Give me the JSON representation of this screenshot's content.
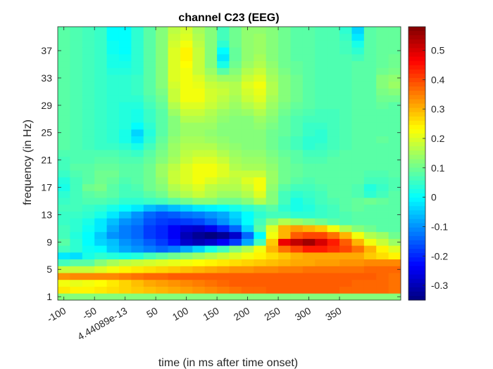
{
  "chart_data": {
    "type": "heatmap",
    "title": "channel C23 (EEG)",
    "xlabel": "time (in ms after time onset)",
    "ylabel": "frequency (in Hz)",
    "colormap": "jet",
    "x": [
      -100,
      -80,
      -60,
      -40,
      -20,
      0,
      20,
      40,
      60,
      80,
      100,
      120,
      140,
      160,
      180,
      200,
      220,
      240,
      260,
      280,
      300,
      320,
      340,
      360,
      380,
      400,
      420,
      440
    ],
    "y": [
      1,
      2,
      3,
      4,
      5,
      6,
      7,
      8,
      9,
      10,
      11,
      12,
      13,
      14,
      15,
      16,
      17,
      18,
      19,
      20,
      21,
      22,
      23,
      24,
      25,
      26,
      27,
      28,
      29,
      30,
      31,
      32,
      33,
      34,
      35,
      36,
      37,
      38,
      39,
      40
    ],
    "x_tick_labels": [
      "-100",
      "-50",
      "4.44089e-13",
      "50",
      "100",
      "150",
      "200",
      "250",
      "300",
      "350"
    ],
    "x_tick_values": [
      -100,
      -50,
      0,
      50,
      100,
      150,
      200,
      250,
      300,
      350
    ],
    "y_tick_values": [
      1,
      5,
      9,
      13,
      17,
      21,
      25,
      29,
      33,
      37
    ],
    "y_tick_labels": [
      "1",
      "5",
      "9",
      "13",
      "17",
      "21",
      "25",
      "29",
      "33",
      "37"
    ],
    "colorbar_ticks": [
      "0.5",
      "0.4",
      "0.3",
      "0.2",
      "0.1",
      "0",
      "-0.1",
      "-0.2",
      "-0.3"
    ],
    "colorbar_tick_values": [
      0.5,
      0.4,
      0.3,
      0.2,
      0.1,
      0,
      -0.1,
      -0.2,
      -0.3
    ],
    "clim": [
      -0.35,
      0.58
    ],
    "xlim": [
      -110,
      450
    ],
    "ylim": [
      0.5,
      40.5
    ],
    "values": [
      [
        0.12,
        0.12,
        0.12,
        0.12,
        0.12,
        0.12,
        0.12,
        0.12,
        0.12,
        0.12,
        0.12,
        0.12,
        0.12,
        0.12,
        0.12,
        0.12,
        0.12,
        0.12,
        0.12,
        0.12,
        0.12,
        0.12,
        0.12,
        0.12,
        0.12,
        0.12,
        0.12,
        0.12
      ],
      [
        0.25,
        0.24,
        0.24,
        0.25,
        0.26,
        0.27,
        0.28,
        0.29,
        0.3,
        0.31,
        0.32,
        0.33,
        0.34,
        0.35,
        0.36,
        0.37,
        0.37,
        0.38,
        0.38,
        0.38,
        0.38,
        0.38,
        0.38,
        0.37,
        0.37,
        0.37,
        0.37,
        0.36
      ],
      [
        0.22,
        0.21,
        0.22,
        0.23,
        0.25,
        0.27,
        0.29,
        0.31,
        0.32,
        0.33,
        0.34,
        0.35,
        0.36,
        0.37,
        0.38,
        0.38,
        0.38,
        0.38,
        0.38,
        0.38,
        0.38,
        0.38,
        0.38,
        0.38,
        0.37,
        0.37,
        0.37,
        0.36
      ],
      [
        0.33,
        0.34,
        0.34,
        0.34,
        0.34,
        0.35,
        0.36,
        0.37,
        0.37,
        0.38,
        0.38,
        0.38,
        0.38,
        0.38,
        0.38,
        0.38,
        0.38,
        0.38,
        0.38,
        0.38,
        0.38,
        0.38,
        0.38,
        0.38,
        0.38,
        0.38,
        0.37,
        0.36
      ],
      [
        0.18,
        0.18,
        0.18,
        0.2,
        0.22,
        0.24,
        0.25,
        0.26,
        0.27,
        0.28,
        0.29,
        0.3,
        0.31,
        0.32,
        0.33,
        0.33,
        0.34,
        0.34,
        0.35,
        0.35,
        0.36,
        0.36,
        0.36,
        0.36,
        0.36,
        0.37,
        0.37,
        0.37
      ],
      [
        0.06,
        0.08,
        0.08,
        0.12,
        0.15,
        0.17,
        0.18,
        0.19,
        0.2,
        0.21,
        0.22,
        0.23,
        0.24,
        0.25,
        0.26,
        0.27,
        0.28,
        0.29,
        0.3,
        0.31,
        0.31,
        0.32,
        0.32,
        0.33,
        0.33,
        0.34,
        0.34,
        0.34
      ],
      [
        -0.02,
        -0.03,
        0.02,
        0.04,
        0.03,
        0.02,
        0.03,
        0.06,
        0.08,
        0.1,
        0.12,
        0.14,
        0.16,
        0.18,
        0.2,
        0.22,
        0.24,
        0.26,
        0.28,
        0.3,
        0.31,
        0.31,
        0.31,
        0.31,
        0.31,
        0.28,
        0.26,
        0.24
      ],
      [
        0.06,
        0.04,
        0.01,
        0.0,
        -0.05,
        -0.08,
        -0.1,
        -0.12,
        -0.14,
        -0.12,
        -0.08,
        -0.04,
        0.02,
        0.06,
        0.12,
        0.16,
        0.22,
        0.3,
        0.36,
        0.4,
        0.44,
        0.44,
        0.42,
        0.4,
        0.36,
        0.3,
        0.24,
        0.2
      ],
      [
        0.08,
        0.04,
        0.0,
        -0.04,
        -0.06,
        -0.1,
        -0.12,
        -0.15,
        -0.18,
        -0.22,
        -0.28,
        -0.3,
        -0.28,
        -0.24,
        -0.18,
        -0.08,
        0.06,
        0.28,
        0.48,
        0.52,
        0.55,
        0.5,
        0.44,
        0.38,
        0.3,
        0.22,
        0.18,
        0.14
      ],
      [
        0.06,
        0.03,
        0.0,
        -0.05,
        -0.1,
        -0.12,
        -0.14,
        -0.18,
        -0.2,
        -0.24,
        -0.3,
        -0.33,
        -0.35,
        -0.33,
        -0.28,
        -0.14,
        0.0,
        0.22,
        0.3,
        0.38,
        0.4,
        0.4,
        0.36,
        0.3,
        0.22,
        0.16,
        0.14,
        0.1
      ],
      [
        0.06,
        0.04,
        0.01,
        -0.02,
        -0.08,
        -0.12,
        -0.14,
        -0.18,
        -0.2,
        -0.24,
        -0.27,
        -0.28,
        -0.25,
        -0.2,
        -0.14,
        -0.04,
        0.08,
        0.2,
        0.3,
        0.32,
        0.3,
        0.28,
        0.22,
        0.16,
        0.12,
        0.1,
        0.08,
        0.08
      ],
      [
        0.05,
        0.04,
        0.02,
        -0.02,
        -0.06,
        -0.1,
        -0.12,
        -0.16,
        -0.18,
        -0.19,
        -0.18,
        -0.17,
        -0.14,
        -0.1,
        -0.06,
        0.0,
        0.06,
        0.12,
        0.16,
        0.14,
        0.12,
        0.1,
        0.08,
        0.07,
        0.08,
        0.08,
        0.08,
        0.08
      ],
      [
        0.05,
        0.05,
        0.04,
        0.02,
        -0.02,
        -0.06,
        -0.1,
        -0.14,
        -0.16,
        -0.15,
        -0.13,
        -0.12,
        -0.1,
        -0.08,
        -0.04,
        0.0,
        0.04,
        0.06,
        0.06,
        0.04,
        0.04,
        0.05,
        0.06,
        0.07,
        0.08,
        0.08,
        0.08,
        0.08
      ],
      [
        0.06,
        0.06,
        0.05,
        0.04,
        0.02,
        0.0,
        -0.02,
        -0.06,
        -0.08,
        -0.06,
        -0.04,
        -0.02,
        -0.01,
        0.0,
        0.02,
        0.04,
        0.06,
        0.08,
        0.04,
        0.02,
        0.03,
        0.05,
        0.06,
        0.08,
        0.09,
        0.08,
        0.08,
        0.08
      ],
      [
        0.05,
        0.06,
        0.07,
        0.07,
        0.06,
        0.04,
        0.04,
        0.05,
        0.06,
        0.08,
        0.1,
        0.12,
        0.12,
        0.1,
        0.1,
        0.12,
        0.16,
        0.12,
        0.06,
        0.02,
        0.04,
        0.06,
        0.07,
        0.08,
        0.09,
        0.1,
        0.09,
        0.08
      ],
      [
        0.04,
        0.06,
        0.08,
        0.09,
        0.08,
        0.06,
        0.06,
        0.08,
        0.1,
        0.14,
        0.16,
        0.18,
        0.16,
        0.14,
        0.14,
        0.16,
        0.2,
        0.12,
        0.06,
        0.04,
        0.05,
        0.06,
        0.08,
        0.08,
        0.07,
        0.04,
        0.06,
        0.08
      ],
      [
        0.02,
        0.06,
        0.1,
        0.11,
        0.08,
        0.06,
        0.07,
        0.1,
        0.12,
        0.16,
        0.18,
        0.2,
        0.17,
        0.16,
        0.16,
        0.18,
        0.22,
        0.13,
        0.08,
        0.06,
        0.06,
        0.07,
        0.08,
        0.08,
        0.07,
        0.03,
        0.05,
        0.07
      ],
      [
        0.03,
        0.06,
        0.08,
        0.1,
        0.09,
        0.07,
        0.08,
        0.1,
        0.13,
        0.18,
        0.2,
        0.22,
        0.2,
        0.18,
        0.17,
        0.2,
        0.22,
        0.14,
        0.1,
        0.08,
        0.07,
        0.08,
        0.08,
        0.08,
        0.08,
        0.06,
        0.06,
        0.07
      ],
      [
        0.05,
        0.07,
        0.08,
        0.1,
        0.1,
        0.08,
        0.08,
        0.1,
        0.14,
        0.18,
        0.2,
        0.22,
        0.22,
        0.2,
        0.18,
        0.18,
        0.18,
        0.14,
        0.1,
        0.09,
        0.08,
        0.08,
        0.08,
        0.08,
        0.08,
        0.07,
        0.07,
        0.08
      ],
      [
        0.06,
        0.08,
        0.08,
        0.09,
        0.09,
        0.08,
        0.08,
        0.1,
        0.14,
        0.17,
        0.2,
        0.22,
        0.22,
        0.2,
        0.16,
        0.15,
        0.15,
        0.13,
        0.1,
        0.09,
        0.08,
        0.08,
        0.08,
        0.08,
        0.08,
        0.08,
        0.08,
        0.08
      ],
      [
        0.06,
        0.07,
        0.07,
        0.08,
        0.08,
        0.07,
        0.07,
        0.09,
        0.12,
        0.15,
        0.18,
        0.2,
        0.2,
        0.18,
        0.15,
        0.14,
        0.14,
        0.12,
        0.1,
        0.08,
        0.07,
        0.07,
        0.08,
        0.08,
        0.08,
        0.08,
        0.08,
        0.08
      ],
      [
        0.07,
        0.07,
        0.07,
        0.07,
        0.07,
        0.06,
        0.05,
        0.08,
        0.11,
        0.14,
        0.17,
        0.18,
        0.18,
        0.16,
        0.14,
        0.13,
        0.13,
        0.11,
        0.09,
        0.08,
        0.06,
        0.06,
        0.07,
        0.08,
        0.08,
        0.08,
        0.08,
        0.08
      ],
      [
        0.08,
        0.07,
        0.06,
        0.05,
        0.05,
        0.04,
        0.02,
        0.06,
        0.1,
        0.14,
        0.16,
        0.16,
        0.16,
        0.14,
        0.13,
        0.12,
        0.12,
        0.1,
        0.08,
        0.06,
        0.04,
        0.05,
        0.06,
        0.07,
        0.08,
        0.08,
        0.08,
        0.08
      ],
      [
        0.08,
        0.07,
        0.06,
        0.05,
        0.04,
        0.02,
        -0.02,
        0.04,
        0.09,
        0.13,
        0.15,
        0.15,
        0.14,
        0.13,
        0.12,
        0.12,
        0.12,
        0.1,
        0.08,
        0.06,
        0.04,
        0.04,
        0.06,
        0.07,
        0.08,
        0.08,
        0.09,
        0.08
      ],
      [
        0.08,
        0.07,
        0.06,
        0.05,
        0.04,
        0.02,
        -0.04,
        0.03,
        0.08,
        0.12,
        0.14,
        0.14,
        0.13,
        0.12,
        0.12,
        0.12,
        0.12,
        0.1,
        0.09,
        0.07,
        0.05,
        0.04,
        0.06,
        0.07,
        0.08,
        0.08,
        0.08,
        0.08
      ],
      [
        0.08,
        0.07,
        0.06,
        0.05,
        0.04,
        0.03,
        0.0,
        0.04,
        0.08,
        0.12,
        0.14,
        0.14,
        0.14,
        0.12,
        0.12,
        0.12,
        0.13,
        0.11,
        0.09,
        0.07,
        0.05,
        0.05,
        0.06,
        0.07,
        0.08,
        0.08,
        0.08,
        0.08
      ],
      [
        0.08,
        0.07,
        0.06,
        0.05,
        0.04,
        0.03,
        0.02,
        0.05,
        0.08,
        0.12,
        0.16,
        0.16,
        0.15,
        0.13,
        0.12,
        0.12,
        0.14,
        0.12,
        0.09,
        0.07,
        0.06,
        0.06,
        0.06,
        0.07,
        0.08,
        0.08,
        0.08,
        0.08
      ],
      [
        0.08,
        0.07,
        0.06,
        0.05,
        0.04,
        0.03,
        0.02,
        0.05,
        0.08,
        0.14,
        0.18,
        0.18,
        0.16,
        0.14,
        0.13,
        0.14,
        0.16,
        0.13,
        0.1,
        0.08,
        0.07,
        0.06,
        0.06,
        0.07,
        0.08,
        0.08,
        0.08,
        0.08
      ],
      [
        0.08,
        0.07,
        0.06,
        0.05,
        0.04,
        0.03,
        0.03,
        0.06,
        0.09,
        0.16,
        0.2,
        0.2,
        0.18,
        0.16,
        0.14,
        0.16,
        0.18,
        0.14,
        0.11,
        0.09,
        0.08,
        0.07,
        0.07,
        0.07,
        0.08,
        0.08,
        0.09,
        0.08
      ],
      [
        0.08,
        0.07,
        0.06,
        0.05,
        0.04,
        0.04,
        0.04,
        0.07,
        0.1,
        0.18,
        0.22,
        0.22,
        0.19,
        0.17,
        0.15,
        0.18,
        0.2,
        0.15,
        0.12,
        0.1,
        0.08,
        0.07,
        0.07,
        0.07,
        0.08,
        0.08,
        0.1,
        0.1
      ],
      [
        0.08,
        0.07,
        0.06,
        0.05,
        0.04,
        0.04,
        0.05,
        0.08,
        0.11,
        0.18,
        0.22,
        0.22,
        0.19,
        0.18,
        0.16,
        0.19,
        0.21,
        0.16,
        0.12,
        0.1,
        0.08,
        0.07,
        0.07,
        0.07,
        0.08,
        0.08,
        0.11,
        0.12
      ],
      [
        0.08,
        0.07,
        0.06,
        0.05,
        0.04,
        0.04,
        0.05,
        0.08,
        0.12,
        0.19,
        0.22,
        0.21,
        0.18,
        0.17,
        0.16,
        0.2,
        0.22,
        0.16,
        0.12,
        0.1,
        0.08,
        0.07,
        0.07,
        0.07,
        0.08,
        0.08,
        0.12,
        0.14
      ],
      [
        0.08,
        0.07,
        0.06,
        0.05,
        0.04,
        0.04,
        0.05,
        0.08,
        0.12,
        0.2,
        0.22,
        0.2,
        0.16,
        0.14,
        0.14,
        0.18,
        0.2,
        0.15,
        0.12,
        0.1,
        0.08,
        0.07,
        0.07,
        0.07,
        0.08,
        0.08,
        0.12,
        0.13
      ],
      [
        0.08,
        0.07,
        0.06,
        0.05,
        0.03,
        0.03,
        0.04,
        0.08,
        0.12,
        0.2,
        0.22,
        0.18,
        0.14,
        0.08,
        0.12,
        0.16,
        0.18,
        0.14,
        0.11,
        0.09,
        0.08,
        0.07,
        0.07,
        0.07,
        0.08,
        0.08,
        0.1,
        0.11
      ],
      [
        0.08,
        0.07,
        0.06,
        0.05,
        0.02,
        0.02,
        0.04,
        0.08,
        0.12,
        0.2,
        0.23,
        0.18,
        0.12,
        0.02,
        0.1,
        0.14,
        0.16,
        0.13,
        0.1,
        0.09,
        0.08,
        0.07,
        0.07,
        0.07,
        0.08,
        0.08,
        0.09,
        0.1
      ],
      [
        0.08,
        0.07,
        0.06,
        0.05,
        0.02,
        0.01,
        0.04,
        0.08,
        0.12,
        0.2,
        0.24,
        0.18,
        0.12,
        -0.02,
        0.09,
        0.13,
        0.15,
        0.12,
        0.1,
        0.08,
        0.08,
        0.07,
        0.07,
        0.07,
        0.06,
        0.08,
        0.09,
        0.1
      ],
      [
        0.08,
        0.07,
        0.06,
        0.05,
        0.01,
        0.0,
        0.04,
        0.08,
        0.12,
        0.2,
        0.24,
        0.18,
        0.12,
        0.0,
        0.09,
        0.13,
        0.14,
        0.12,
        0.1,
        0.08,
        0.08,
        0.07,
        0.07,
        0.06,
        0.04,
        0.08,
        0.09,
        0.09
      ],
      [
        0.08,
        0.07,
        0.06,
        0.05,
        0.01,
        0.0,
        0.04,
        0.08,
        0.12,
        0.19,
        0.22,
        0.17,
        0.12,
        0.04,
        0.1,
        0.13,
        0.14,
        0.12,
        0.1,
        0.08,
        0.08,
        0.07,
        0.07,
        0.06,
        0.02,
        0.08,
        0.09,
        0.09
      ],
      [
        0.08,
        0.07,
        0.06,
        0.05,
        0.0,
        0.0,
        0.04,
        0.08,
        0.12,
        0.18,
        0.2,
        0.16,
        0.12,
        0.06,
        0.1,
        0.13,
        0.14,
        0.12,
        0.1,
        0.08,
        0.08,
        0.07,
        0.07,
        0.05,
        -0.02,
        0.08,
        0.09,
        0.09
      ],
      [
        0.08,
        0.07,
        0.06,
        0.05,
        0.0,
        0.0,
        0.04,
        0.08,
        0.12,
        0.17,
        0.19,
        0.15,
        0.12,
        0.06,
        0.1,
        0.13,
        0.13,
        0.12,
        0.1,
        0.08,
        0.08,
        0.07,
        0.07,
        0.04,
        -0.04,
        0.08,
        0.09,
        0.09
      ]
    ]
  }
}
